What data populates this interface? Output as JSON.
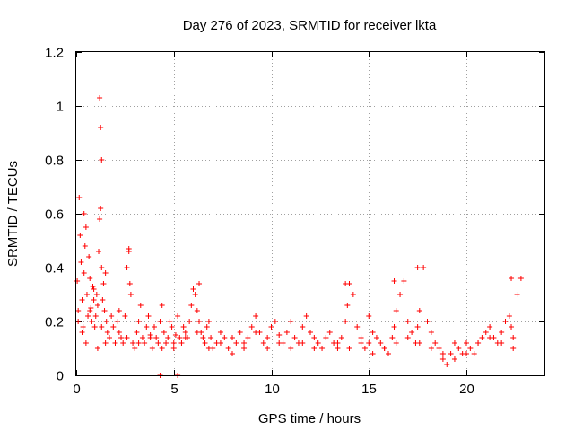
{
  "chart_data": {
    "type": "scatter",
    "title": "Day 276 of 2023, SRMTID for receiver lkta",
    "xlabel": "GPS time / hours",
    "ylabel": "SRMTID / TECUs",
    "xlim": [
      0,
      24
    ],
    "ylim": [
      0,
      1.2
    ],
    "xticks": [
      0,
      5,
      10,
      15,
      20
    ],
    "xtick_labels": [
      "0",
      "5",
      "10",
      "15",
      "20"
    ],
    "yticks": [
      0,
      0.2,
      0.4,
      0.6,
      0.8,
      1.0,
      1.2
    ],
    "ytick_labels": [
      "0",
      "0.2",
      "0.4",
      "0.6",
      "0.8",
      "1",
      "1.2"
    ],
    "grid": true,
    "marker": "+",
    "color": "#ff0000",
    "series": [
      {
        "name": "SRMTID",
        "x": [
          0.05,
          0.1,
          0.15,
          0.2,
          0.25,
          0.3,
          0.35,
          0.4,
          0.45,
          0.5,
          0.55,
          0.6,
          0.65,
          0.7,
          0.75,
          0.8,
          0.85,
          0.9,
          0.95,
          1.0,
          1.05,
          1.1,
          1.15,
          1.2,
          1.25,
          1.3,
          1.35,
          1.4,
          1.45,
          1.5,
          1.55,
          1.6,
          1.7,
          1.8,
          1.9,
          2.0,
          2.1,
          2.2,
          2.3,
          2.4,
          2.5,
          2.6,
          2.7,
          2.75,
          2.8,
          2.9,
          3.0,
          3.1,
          3.2,
          3.3,
          3.4,
          3.5,
          3.6,
          3.7,
          3.8,
          3.9,
          4.0,
          4.1,
          4.2,
          4.3,
          4.4,
          4.5,
          4.6,
          4.7,
          4.8,
          4.9,
          5.0,
          5.1,
          5.2,
          5.3,
          5.4,
          5.5,
          5.6,
          5.7,
          5.8,
          5.9,
          6.0,
          6.1,
          6.2,
          6.3,
          6.4,
          6.5,
          6.6,
          6.7,
          6.8,
          6.9,
          7.0,
          7.2,
          7.4,
          7.6,
          7.8,
          8.0,
          8.2,
          8.4,
          8.6,
          8.8,
          9.0,
          9.2,
          9.4,
          9.6,
          9.8,
          10.0,
          10.2,
          10.4,
          10.6,
          10.8,
          11.0,
          11.2,
          11.4,
          11.6,
          11.8,
          12.0,
          12.2,
          12.4,
          12.6,
          12.8,
          13.0,
          13.2,
          13.4,
          13.6,
          13.8,
          13.9,
          14.0,
          14.2,
          14.4,
          14.6,
          14.8,
          15.0,
          15.2,
          15.4,
          15.6,
          15.8,
          16.0,
          16.2,
          16.3,
          16.4,
          16.6,
          16.8,
          17.0,
          17.2,
          17.4,
          17.5,
          17.6,
          17.8,
          18.0,
          18.2,
          18.4,
          18.6,
          18.8,
          19.0,
          19.2,
          19.4,
          19.6,
          19.8,
          20.0,
          20.2,
          20.4,
          20.6,
          20.8,
          21.0,
          21.2,
          21.4,
          21.6,
          21.8,
          22.0,
          22.2,
          22.3,
          22.4,
          22.6,
          22.8,
          0.1,
          0.3,
          0.5,
          0.7,
          0.9,
          1.1,
          1.3,
          1.5,
          2.2,
          2.6,
          3.2,
          3.8,
          4.4,
          5.0,
          5.6,
          6.2,
          6.8,
          7.4,
          8.0,
          8.6,
          9.2,
          9.8,
          10.4,
          11.0,
          11.6,
          12.2,
          12.8,
          13.4,
          14.0,
          14.6,
          15.2,
          15.8,
          16.4,
          17.0,
          17.6,
          18.2,
          18.8,
          19.4,
          20.0,
          20.6,
          21.2,
          21.8,
          22.4,
          4.3,
          5.2,
          0.4,
          1.3,
          1.25,
          1.2,
          13.8,
          15.0,
          16.3,
          17.5,
          22.3,
          2.7,
          6.3
        ],
        "y": [
          0.35,
          0.24,
          0.66,
          0.52,
          0.42,
          0.28,
          0.18,
          0.38,
          0.48,
          0.55,
          0.3,
          0.22,
          0.44,
          0.36,
          0.25,
          0.2,
          0.33,
          0.28,
          0.18,
          0.22,
          0.3,
          0.26,
          0.46,
          0.58,
          0.62,
          0.4,
          0.28,
          0.34,
          0.24,
          0.38,
          0.2,
          0.16,
          0.14,
          0.22,
          0.18,
          0.12,
          0.2,
          0.16,
          0.14,
          0.12,
          0.22,
          0.4,
          0.46,
          0.34,
          0.3,
          0.12,
          0.1,
          0.16,
          0.2,
          0.26,
          0.14,
          0.12,
          0.18,
          0.22,
          0.15,
          0.1,
          0.18,
          0.14,
          0.12,
          0.2,
          0.26,
          0.16,
          0.12,
          0.14,
          0.2,
          0.18,
          0.12,
          0.15,
          0.22,
          0.14,
          0.12,
          0.18,
          0.16,
          0.14,
          0.2,
          0.26,
          0.32,
          0.3,
          0.24,
          0.2,
          0.16,
          0.14,
          0.12,
          0.18,
          0.2,
          0.14,
          0.1,
          0.12,
          0.16,
          0.14,
          0.1,
          0.08,
          0.12,
          0.16,
          0.1,
          0.14,
          0.18,
          0.22,
          0.16,
          0.12,
          0.14,
          0.18,
          0.2,
          0.15,
          0.12,
          0.16,
          0.2,
          0.14,
          0.12,
          0.18,
          0.22,
          0.16,
          0.14,
          0.12,
          0.1,
          0.14,
          0.16,
          0.12,
          0.1,
          0.14,
          0.2,
          0.26,
          0.34,
          0.3,
          0.18,
          0.14,
          0.1,
          0.12,
          0.16,
          0.14,
          0.12,
          0.1,
          0.08,
          0.14,
          0.18,
          0.24,
          0.3,
          0.35,
          0.2,
          0.16,
          0.12,
          0.18,
          0.24,
          0.4,
          0.2,
          0.16,
          0.12,
          0.1,
          0.06,
          0.04,
          0.08,
          0.12,
          0.1,
          0.08,
          0.12,
          0.1,
          0.08,
          0.12,
          0.14,
          0.16,
          0.18,
          0.14,
          0.12,
          0.16,
          0.2,
          0.22,
          0.18,
          0.14,
          0.3,
          0.36,
          0.2,
          0.16,
          0.12,
          0.24,
          0.32,
          0.1,
          0.18,
          0.12,
          0.24,
          0.14,
          0.12,
          0.14,
          0.1,
          0.1,
          0.14,
          0.16,
          0.1,
          0.12,
          0.14,
          0.12,
          0.16,
          0.1,
          0.12,
          0.1,
          0.12,
          0.1,
          0.14,
          0.12,
          0.1,
          0.12,
          0.08,
          0.1,
          0.12,
          0.14,
          0.12,
          0.1,
          0.08,
          0.06,
          0.08,
          0.12,
          0.14,
          0.12,
          0.1,
          0.0,
          0.0,
          0.6,
          0.8,
          0.92,
          1.03,
          0.34,
          0.22,
          0.35,
          0.4,
          0.36,
          0.47,
          0.34
        ]
      }
    ]
  }
}
